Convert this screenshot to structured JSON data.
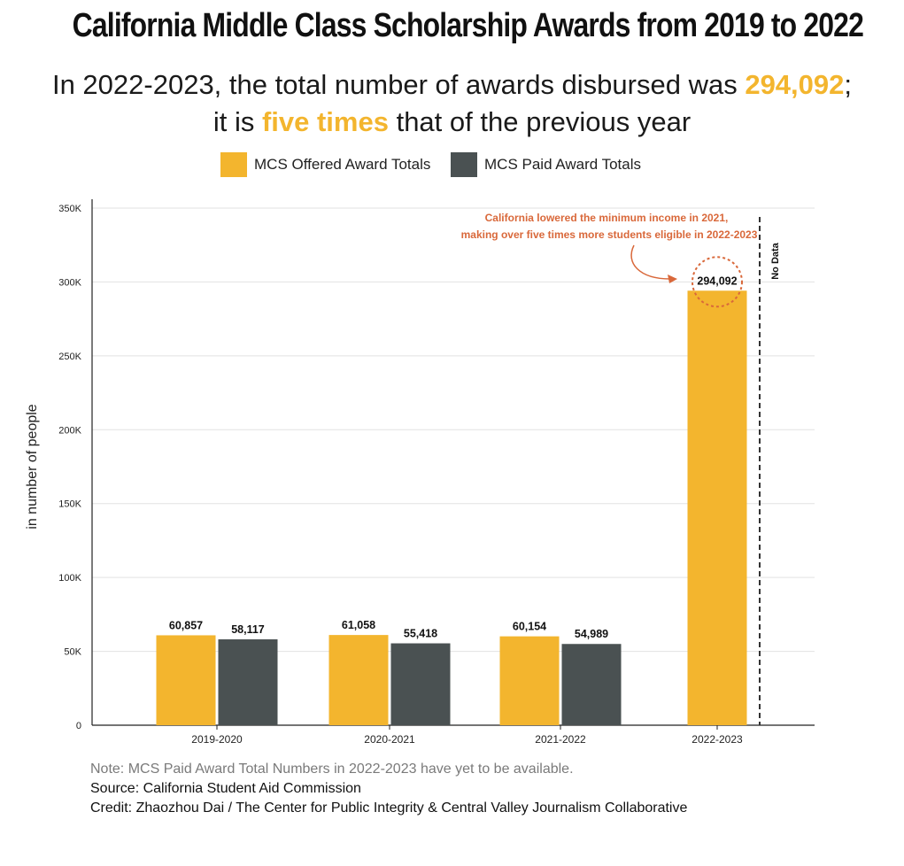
{
  "title": "California Middle Class Scholarship Awards from 2019 to 2022",
  "subtitle": {
    "line1_pre": "In 2022-2023, the total number of awards disbursed was ",
    "line1_highlight": "294,092",
    "line1_post": ";",
    "line2_pre": "it is ",
    "line2_highlight": "five times",
    "line2_post": " that of the previous year",
    "highlight_color": "#f3b52e"
  },
  "chart_data": {
    "type": "bar",
    "categories": [
      "2019-2020",
      "2020-2021",
      "2021-2022",
      "2022-2023"
    ],
    "series": [
      {
        "name": "MCS Offered Award Totals",
        "color": "#f3b52e",
        "values": [
          60857,
          61058,
          60154,
          294092
        ],
        "labels": [
          "60,857",
          "61,058",
          "60,154",
          "294,092"
        ]
      },
      {
        "name": "MCS Paid Award Totals",
        "color": "#4a5152",
        "values": [
          58117,
          55418,
          54989,
          null
        ],
        "labels": [
          "58,117",
          "55,418",
          "54,989",
          ""
        ]
      }
    ],
    "ylabel": "in number of people",
    "ylim": [
      0,
      350000
    ],
    "yticks": [
      0,
      50000,
      100000,
      150000,
      200000,
      250000,
      300000,
      350000
    ],
    "ytick_labels": [
      "0",
      "50K",
      "100K",
      "150K",
      "200K",
      "250K",
      "300K",
      "350K"
    ],
    "grid": true,
    "legend_position": "top",
    "annotation": {
      "line1": "California lowered the minimum income in 2021,",
      "line2": "making over five times more students eligible in 2022-2023",
      "color": "#d9683a"
    },
    "no_data_label": "No Data"
  },
  "footer": {
    "note": "Note: MCS Paid Award Total Numbers in 2022-2023 have yet to be available.",
    "source": "Source: California Student Aid Commission",
    "credit": "Credit: Zhaozhou Dai / The Center for Public Integrity & Central Valley Journalism Collaborative"
  }
}
